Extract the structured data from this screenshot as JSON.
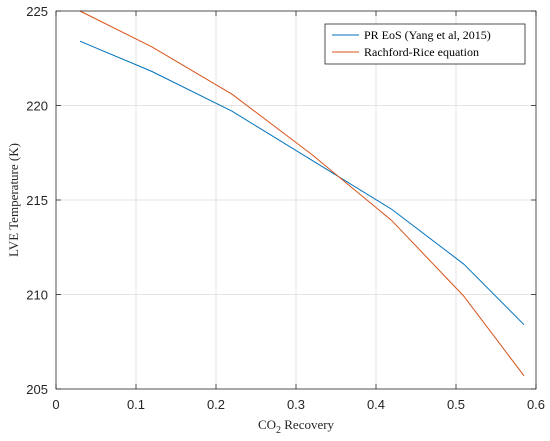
{
  "chart_data": {
    "type": "line",
    "title": "",
    "xlabel": "CO",
    "xlabel_subscript": "2",
    "xlabel_suffix": " Recovery",
    "ylabel": "LVE Temperature (K)",
    "xlim": [
      0,
      0.6
    ],
    "ylim": [
      205,
      225
    ],
    "xticks": [
      0,
      0.1,
      0.2,
      0.3,
      0.4,
      0.5,
      0.6
    ],
    "xtick_labels": [
      "0",
      "0.1",
      "0.2",
      "0.3",
      "0.4",
      "0.5",
      "0.6"
    ],
    "yticks": [
      205,
      210,
      215,
      220,
      225
    ],
    "ytick_labels": [
      "205",
      "210",
      "215",
      "220",
      "225"
    ],
    "grid": true,
    "legend_position": "top-right",
    "series": [
      {
        "name": "PR EoS (Yang et al, 2015)",
        "color": "#0072BD",
        "x": [
          0.03,
          0.12,
          0.22,
          0.32,
          0.42,
          0.51,
          0.585
        ],
        "y": [
          223.4,
          221.8,
          219.7,
          217.1,
          214.5,
          211.6,
          208.4
        ]
      },
      {
        "name": "Rachford-Rice equation",
        "color": "#D95319",
        "x": [
          0.03,
          0.12,
          0.22,
          0.32,
          0.42,
          0.51,
          0.585
        ],
        "y": [
          225.0,
          223.1,
          220.6,
          217.4,
          213.9,
          209.9,
          205.7
        ]
      }
    ]
  }
}
